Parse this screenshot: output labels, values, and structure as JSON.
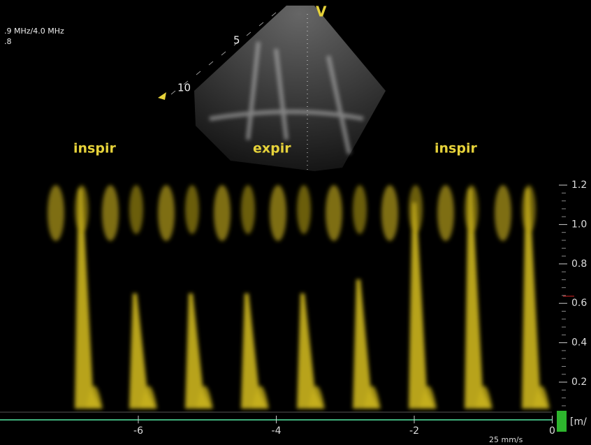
{
  "header": {
    "probe": ".9 MHz/4.0 MHz",
    "gain": ".8",
    "marker": "V"
  },
  "depth_labels": [
    "5",
    "10"
  ],
  "phases": [
    "inspir",
    "expir",
    "inspir"
  ],
  "velocity_axis": {
    "labels": [
      "1.2",
      "1.0",
      "0.8",
      "0.6",
      "0.4",
      "0.2"
    ],
    "unit": "[m/"
  },
  "time_axis": {
    "labels": [
      "-6",
      "-4",
      "-2",
      "0"
    ],
    "sweep": "25 mm/s"
  }
}
